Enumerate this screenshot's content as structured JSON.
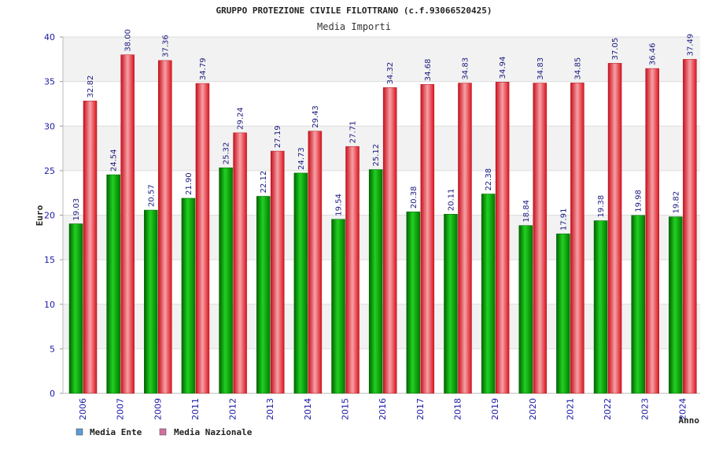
{
  "chart_data": {
    "type": "bar",
    "title": "GRUPPO PROTEZIONE CIVILE FILOTTRANO (c.f.93066520425)",
    "subtitle": "Media Importi",
    "xlabel": "Anno",
    "ylabel": "Euro",
    "ylim": [
      0,
      40
    ],
    "yticks": [
      0,
      5,
      10,
      15,
      20,
      25,
      30,
      35,
      40
    ],
    "grid": true,
    "legend_position": "bottom-left",
    "categories": [
      "2006",
      "2007",
      "2009",
      "2011",
      "2012",
      "2013",
      "2014",
      "2015",
      "2016",
      "2017",
      "2018",
      "2019",
      "2020",
      "2021",
      "2022",
      "2023",
      "2024"
    ],
    "series": [
      {
        "name": "Media Ente",
        "color": "#00a000",
        "values": [
          19.03,
          24.54,
          20.57,
          21.9,
          25.32,
          22.12,
          24.73,
          19.54,
          25.12,
          20.38,
          20.11,
          22.38,
          18.84,
          17.91,
          19.38,
          19.98,
          19.82
        ],
        "labels": [
          "19.03",
          "24.54",
          "20.57",
          "21.90",
          "25.32",
          "22.12",
          "24.73",
          "19.54",
          "25.12",
          "20.38",
          "20.11",
          "22.38",
          "18.84",
          "17.91",
          "19.38",
          "19.98",
          "19.82"
        ]
      },
      {
        "name": "Media Nazionale",
        "color": "#e8202a",
        "values": [
          32.82,
          38.0,
          37.36,
          34.79,
          29.24,
          27.19,
          29.43,
          27.71,
          34.32,
          34.68,
          34.83,
          34.94,
          34.83,
          34.85,
          37.05,
          36.46,
          37.49
        ],
        "labels": [
          "32.82",
          "38.00",
          "37.36",
          "34.79",
          "29.24",
          "27.19",
          "29.43",
          "27.71",
          "34.32",
          "34.68",
          "34.83",
          "34.94",
          "34.83",
          "34.85",
          "37.05",
          "36.46",
          "37.49"
        ]
      }
    ],
    "legend": [
      {
        "label": "Media Ente",
        "color": "#5b9bd5"
      },
      {
        "label": "Media Nazionale",
        "color": "#d36fa3"
      }
    ]
  }
}
